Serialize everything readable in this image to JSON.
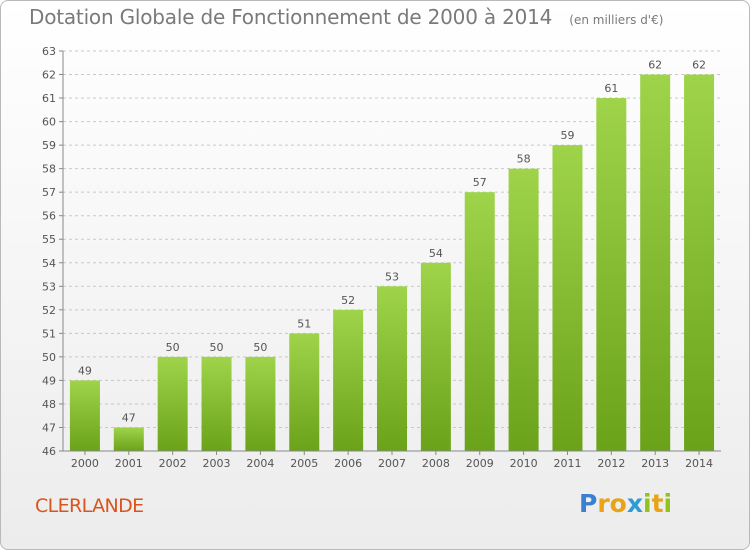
{
  "header": {
    "title": "Dotation Globale de Fonctionnement de 2000 à 2014",
    "subtitle": "(en milliers d'€)"
  },
  "footer": {
    "commune": "CLERLANDE",
    "logo_text": "Proxiti",
    "logo_letters": [
      {
        "char": "P",
        "color": "#3a7fd0"
      },
      {
        "char": "r",
        "color": "#e8a317"
      },
      {
        "char": "o",
        "color": "#e8a317"
      },
      {
        "char": "x",
        "color": "#2f9bd6"
      },
      {
        "char": "i",
        "color": "#8fc31f"
      },
      {
        "char": "t",
        "color": "#e8a317"
      },
      {
        "char": "i",
        "color": "#8fc31f"
      }
    ]
  },
  "colors": {
    "bar_top": "#9fd44a",
    "bar_bottom": "#6aa21a",
    "grid": "#c8c8c8",
    "axis": "#888888",
    "text": "#555555",
    "commune": "#d9541e"
  },
  "chart_data": {
    "type": "bar",
    "categories": [
      "2000",
      "2001",
      "2002",
      "2003",
      "2004",
      "2005",
      "2006",
      "2007",
      "2008",
      "2009",
      "2010",
      "2011",
      "2012",
      "2013",
      "2014"
    ],
    "values": [
      49,
      47,
      50,
      50,
      50,
      51,
      52,
      53,
      54,
      57,
      58,
      59,
      61,
      62,
      62
    ],
    "ylim": [
      46,
      63
    ],
    "yticks": [
      46,
      47,
      48,
      49,
      50,
      51,
      52,
      53,
      54,
      55,
      56,
      57,
      58,
      59,
      60,
      61,
      62,
      63
    ],
    "grid": true,
    "data_labels": true
  }
}
